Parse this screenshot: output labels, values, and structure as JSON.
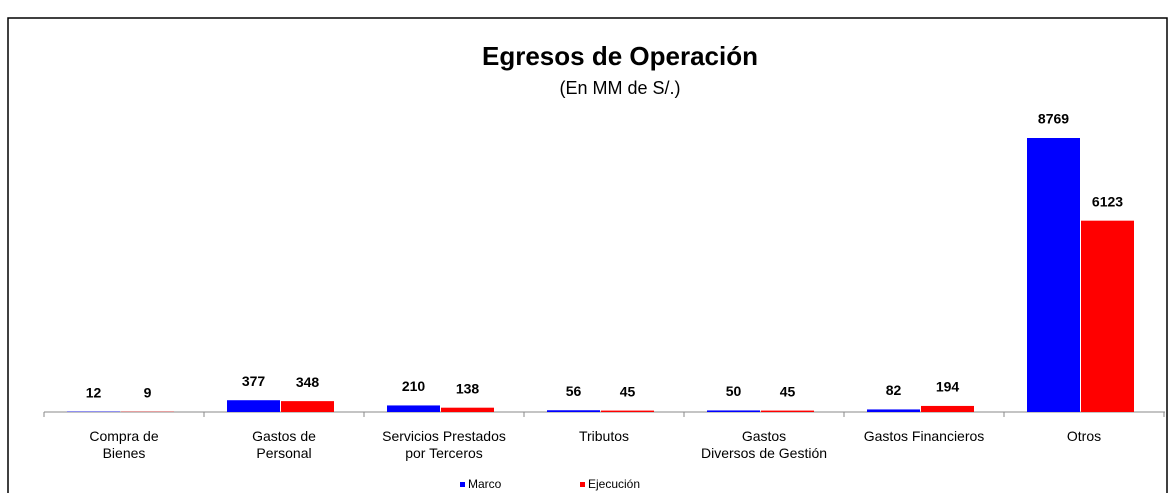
{
  "chart_data": {
    "type": "bar",
    "title": "Egresos de Operación",
    "subtitle": "(En MM de S/.)",
    "categories": [
      "Compra de\nBienes",
      "Gastos de\nPersonal",
      "Servicios Prestados\npor Terceros",
      "Tributos",
      "Gastos\nDiversos de Gestión",
      "Gastos Financieros",
      "Otros"
    ],
    "series": [
      {
        "name": "Marco",
        "color": "#0000ff",
        "values": [
          12,
          377,
          210,
          56,
          50,
          82,
          8769
        ]
      },
      {
        "name": "Ejecución",
        "color": "#ff0000",
        "values": [
          9,
          348,
          138,
          45,
          45,
          194,
          6123
        ]
      }
    ],
    "legend": "bottom"
  }
}
